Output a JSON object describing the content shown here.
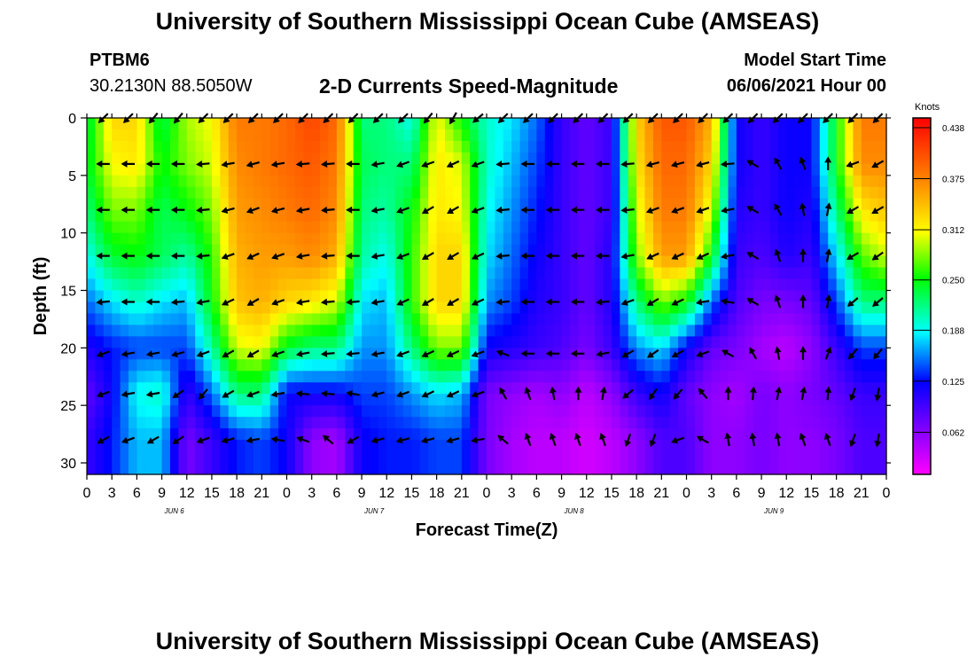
{
  "header": {
    "title": "University of Southern Mississippi Ocean Cube (AMSEAS)",
    "station_id": "PTBM6",
    "station_coords": "30.2130N  88.5050W",
    "plot_title": "2-D Currents Speed-Magnitude",
    "start_time_label": "Model Start Time",
    "start_time_value": "06/06/2021 Hour 00"
  },
  "footer": {
    "title": "University of Southern Mississippi Ocean Cube (AMSEAS)"
  },
  "chart_data": {
    "type": "heatmap",
    "title": "2-D Currents Speed-Magnitude",
    "xlabel": "Forecast Time(Z)",
    "ylabel": "Depth (ft)",
    "x_tick_labels": [
      "0",
      "3",
      "6",
      "9",
      "12",
      "15",
      "18",
      "21",
      "0",
      "3",
      "6",
      "9",
      "12",
      "15",
      "18",
      "21",
      "0",
      "3",
      "6",
      "9",
      "12",
      "15",
      "18",
      "21",
      "0",
      "3",
      "6",
      "9",
      "12",
      "15",
      "18",
      "21",
      "0"
    ],
    "day_labels": [
      "JUN 6",
      "JUN 7",
      "JUN 8",
      "JUN 9"
    ],
    "xlim_hours": [
      0,
      96
    ],
    "y_ticks": [
      0,
      5,
      10,
      15,
      20,
      25,
      30
    ],
    "ylim_ft": [
      0,
      31
    ],
    "colorbar": {
      "unit": "Knots",
      "ticks": [
        "0.438",
        "0.375",
        "0.312",
        "0.250",
        "0.188",
        "0.125",
        "0.062"
      ],
      "range": [
        0.01,
        0.45
      ]
    },
    "depths_ft": [
      0,
      4,
      8,
      12,
      16,
      20,
      24,
      28
    ],
    "times_h": [
      0,
      3,
      6,
      9,
      12,
      15,
      18,
      21,
      24,
      27,
      30,
      33,
      36,
      39,
      42,
      45,
      48,
      51,
      54,
      57,
      60,
      63,
      66,
      69,
      72,
      75,
      78,
      81,
      84,
      87,
      90,
      93,
      96
    ],
    "speed_knots": [
      [
        0.23,
        0.33,
        0.33,
        0.23,
        0.29,
        0.31,
        0.38,
        0.38,
        0.39,
        0.41,
        0.39,
        0.22,
        0.22,
        0.19,
        0.31,
        0.25,
        0.2,
        0.18,
        0.15,
        0.1,
        0.08,
        0.1,
        0.33,
        0.4,
        0.4,
        0.35,
        0.12,
        0.1,
        0.12,
        0.12,
        0.25,
        0.38,
        0.38
      ],
      [
        0.24,
        0.31,
        0.32,
        0.25,
        0.28,
        0.3,
        0.37,
        0.38,
        0.39,
        0.4,
        0.38,
        0.23,
        0.22,
        0.22,
        0.32,
        0.3,
        0.2,
        0.17,
        0.14,
        0.1,
        0.08,
        0.1,
        0.32,
        0.39,
        0.39,
        0.33,
        0.12,
        0.1,
        0.12,
        0.12,
        0.25,
        0.37,
        0.37
      ],
      [
        0.22,
        0.28,
        0.28,
        0.23,
        0.25,
        0.28,
        0.36,
        0.37,
        0.38,
        0.39,
        0.37,
        0.22,
        0.21,
        0.25,
        0.32,
        0.31,
        0.19,
        0.16,
        0.13,
        0.1,
        0.08,
        0.1,
        0.3,
        0.38,
        0.38,
        0.3,
        0.11,
        0.1,
        0.12,
        0.11,
        0.22,
        0.32,
        0.34
      ],
      [
        0.19,
        0.24,
        0.25,
        0.23,
        0.21,
        0.26,
        0.35,
        0.36,
        0.36,
        0.37,
        0.35,
        0.21,
        0.19,
        0.26,
        0.33,
        0.33,
        0.18,
        0.15,
        0.12,
        0.1,
        0.08,
        0.11,
        0.28,
        0.36,
        0.36,
        0.25,
        0.1,
        0.09,
        0.11,
        0.1,
        0.18,
        0.27,
        0.3
      ],
      [
        0.15,
        0.18,
        0.2,
        0.18,
        0.17,
        0.25,
        0.34,
        0.35,
        0.33,
        0.32,
        0.3,
        0.18,
        0.17,
        0.26,
        0.33,
        0.33,
        0.16,
        0.14,
        0.11,
        0.1,
        0.08,
        0.11,
        0.22,
        0.28,
        0.25,
        0.15,
        0.09,
        0.07,
        0.07,
        0.08,
        0.14,
        0.22,
        0.22
      ],
      [
        0.11,
        0.13,
        0.14,
        0.14,
        0.14,
        0.21,
        0.3,
        0.31,
        0.24,
        0.22,
        0.22,
        0.16,
        0.16,
        0.22,
        0.28,
        0.28,
        0.12,
        0.11,
        0.1,
        0.09,
        0.07,
        0.1,
        0.16,
        0.18,
        0.12,
        0.08,
        0.07,
        0.05,
        0.04,
        0.06,
        0.1,
        0.14,
        0.14
      ],
      [
        0.08,
        0.12,
        0.19,
        0.2,
        0.1,
        0.15,
        0.22,
        0.22,
        0.12,
        0.12,
        0.12,
        0.14,
        0.14,
        0.16,
        0.18,
        0.17,
        0.07,
        0.06,
        0.05,
        0.06,
        0.04,
        0.06,
        0.1,
        0.12,
        0.08,
        0.06,
        0.05,
        0.07,
        0.06,
        0.07,
        0.08,
        0.1,
        0.1
      ],
      [
        0.1,
        0.13,
        0.17,
        0.17,
        0.07,
        0.1,
        0.13,
        0.14,
        0.12,
        0.06,
        0.05,
        0.12,
        0.13,
        0.13,
        0.14,
        0.14,
        0.07,
        0.05,
        0.04,
        0.04,
        0.03,
        0.04,
        0.06,
        0.09,
        0.09,
        0.06,
        0.06,
        0.07,
        0.06,
        0.06,
        0.07,
        0.09,
        0.09
      ]
    ],
    "arrows_rows_depth_ft": [
      0,
      4,
      8,
      12,
      16,
      20.5,
      24,
      28
    ],
    "arrows_times_h": [
      2,
      5,
      8,
      11,
      14,
      17,
      20,
      23,
      26,
      29,
      32,
      35,
      38,
      41,
      44,
      47,
      50,
      53,
      56,
      59,
      62,
      65,
      68,
      71,
      74,
      77,
      80,
      83,
      86,
      89,
      92,
      95
    ],
    "arrow_dir_deg": [
      [
        225,
        225,
        230,
        230,
        225,
        225,
        225,
        225,
        225,
        225,
        225,
        225,
        225,
        230,
        240,
        220,
        225,
        225,
        225,
        225,
        225,
        225,
        225,
        225,
        225,
        225,
        225,
        225,
        225,
        225,
        225,
        225
      ],
      [
        180,
        180,
        180,
        180,
        185,
        190,
        195,
        190,
        185,
        185,
        180,
        190,
        200,
        200,
        205,
        200,
        185,
        180,
        180,
        180,
        180,
        185,
        195,
        195,
        195,
        185,
        150,
        120,
        110,
        90,
        200,
        210
      ],
      [
        180,
        180,
        180,
        180,
        185,
        195,
        200,
        195,
        190,
        185,
        180,
        190,
        200,
        210,
        210,
        200,
        185,
        180,
        180,
        180,
        180,
        185,
        200,
        200,
        200,
        190,
        150,
        120,
        100,
        80,
        210,
        210
      ],
      [
        180,
        180,
        180,
        180,
        185,
        200,
        205,
        200,
        190,
        185,
        180,
        190,
        200,
        210,
        210,
        205,
        185,
        180,
        180,
        180,
        180,
        190,
        205,
        205,
        205,
        190,
        150,
        110,
        90,
        80,
        210,
        215
      ],
      [
        185,
        180,
        180,
        185,
        190,
        205,
        210,
        200,
        190,
        185,
        185,
        190,
        205,
        210,
        210,
        205,
        185,
        180,
        180,
        180,
        185,
        200,
        210,
        205,
        190,
        170,
        150,
        110,
        90,
        80,
        220,
        220
      ],
      [
        200,
        190,
        190,
        195,
        200,
        210,
        210,
        200,
        190,
        185,
        185,
        190,
        200,
        205,
        205,
        200,
        160,
        180,
        180,
        180,
        190,
        210,
        215,
        210,
        200,
        150,
        120,
        100,
        90,
        70,
        230,
        230
      ],
      [
        200,
        190,
        190,
        215,
        230,
        210,
        200,
        190,
        175,
        175,
        170,
        195,
        200,
        205,
        205,
        200,
        120,
        110,
        100,
        90,
        80,
        220,
        235,
        230,
        130,
        90,
        85,
        80,
        80,
        85,
        250,
        260
      ],
      [
        210,
        200,
        210,
        215,
        200,
        195,
        190,
        170,
        160,
        140,
        210,
        195,
        195,
        195,
        195,
        190,
        140,
        110,
        110,
        110,
        110,
        250,
        250,
        200,
        150,
        100,
        100,
        100,
        110,
        110,
        250,
        260
      ]
    ]
  }
}
